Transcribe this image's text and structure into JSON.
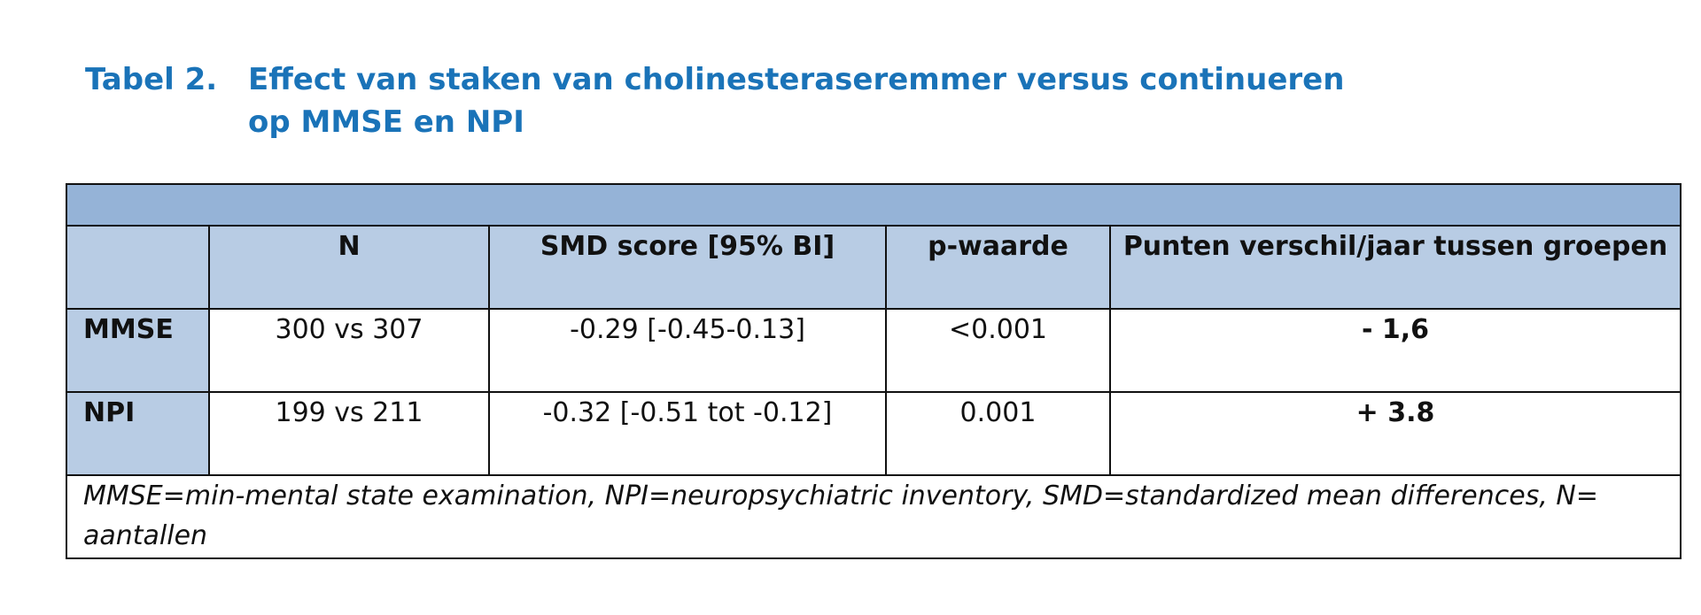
{
  "title": {
    "label": "Tabel 2.",
    "line1": "Effect van staken van cholinesteraseremmer versus continueren",
    "line2": "op MMSE en NPI"
  },
  "table": {
    "columns": [
      "",
      "N",
      "SMD score [95% BI]",
      "p-waarde",
      "Punten verschil/jaar tussen groepen"
    ],
    "rows": [
      {
        "label": "MMSE",
        "n": "300 vs 307",
        "smd": "-0.29 [-0.45-0.13]",
        "p": "<0.001",
        "diff": "- 1,6"
      },
      {
        "label": "NPI",
        "n": "199 vs 211",
        "smd": "-0.32 [-0.51 tot -0.12]",
        "p": "0.001",
        "diff": "+ 3.8"
      }
    ],
    "footnote": "MMSE=min-mental state examination, NPI=neuropsychiatric inventory, SMD=standardized mean differences, N= aantallen"
  },
  "colors": {
    "title": "#1a73b8",
    "header_bar": "#95b3d7",
    "header_cells": "#b8cce4"
  }
}
